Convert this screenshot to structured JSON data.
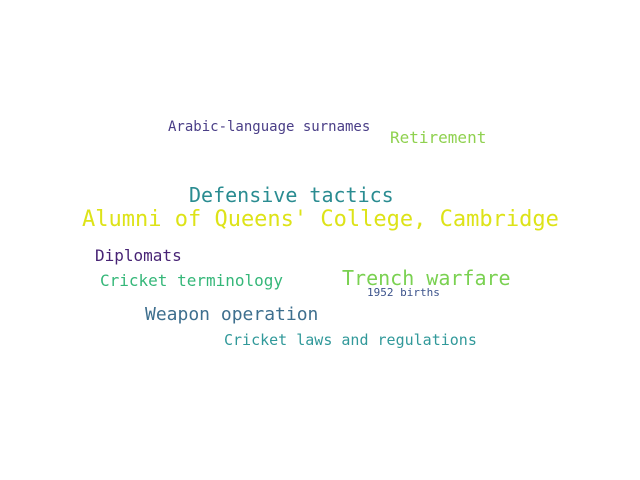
{
  "word_cloud": {
    "words": [
      {
        "id": "arabic",
        "text": "Arabic-language surnames",
        "color": "#4a3e87"
      },
      {
        "id": "retire",
        "text": "Retirement",
        "color": "#8fd14f"
      },
      {
        "id": "defense",
        "text": "Defensive tactics",
        "color": "#2a8c91"
      },
      {
        "id": "queens",
        "text": "Alumni of Queens' College, Cambridge",
        "color": "#dde318"
      },
      {
        "id": "diplo",
        "text": "Diplomats",
        "color": "#482475"
      },
      {
        "id": "cterm",
        "text": "Cricket terminology",
        "color": "#35b779"
      },
      {
        "id": "trench",
        "text": "Trench warfare",
        "color": "#7ad151"
      },
      {
        "id": "1952",
        "text": "1952 births",
        "color": "#3b528b"
      },
      {
        "id": "weapon",
        "text": "Weapon operation",
        "color": "#3e6f8e"
      },
      {
        "id": "claws",
        "text": "Cricket laws and regulations",
        "color": "#31999a"
      }
    ]
  }
}
